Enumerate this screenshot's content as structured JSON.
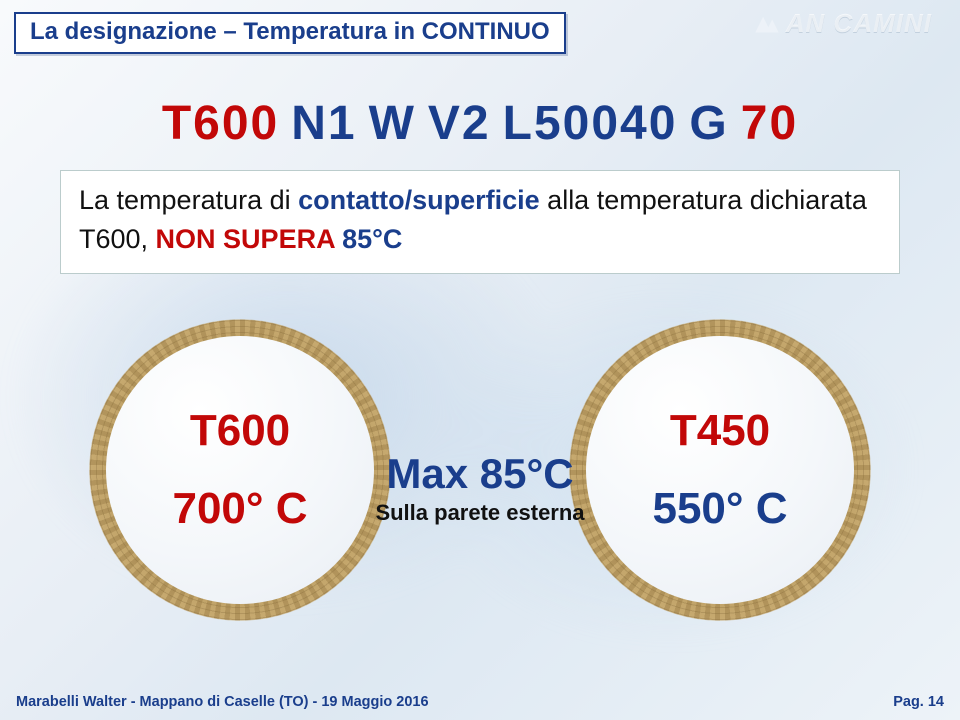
{
  "colors": {
    "blue": "#1a3e8c",
    "red": "#c20808",
    "ring": "#b89a5e",
    "bg_light": "#f8fafc",
    "bg_dark": "#dde8f2"
  },
  "watermark": "AN CAMINI",
  "title": "La designazione – Temperatura in CONTINUO",
  "designation": {
    "parts": [
      {
        "text": "T600",
        "color": "#c20808"
      },
      {
        "text": "N1",
        "color": "#1a3e8c"
      },
      {
        "text": "W",
        "color": "#1a3e8c"
      },
      {
        "text": "V2",
        "color": "#1a3e8c"
      },
      {
        "text": "L50040",
        "color": "#1a3e8c"
      },
      {
        "text": "G",
        "color": "#1a3e8c"
      },
      {
        "text": "70",
        "color": "#c20808"
      }
    ]
  },
  "description": {
    "prefix": "La temperatura di ",
    "blue1": "contatto/superficie",
    "mid": " alla temperatura dichiarata ",
    "t600": "T600, ",
    "red": "NON SUPERA ",
    "temp": "85°C"
  },
  "circles": {
    "left": {
      "t_class": "T600",
      "value": "700° C",
      "value_color": "#c20808"
    },
    "right": {
      "t_class": "T450",
      "value": "550° C",
      "value_color": "#1a3e8c"
    }
  },
  "center": {
    "max": "Max  85°C",
    "sub": "Sulla parete esterna"
  },
  "footer": {
    "left": "Marabelli  Walter  -  Mappano di Caselle (TO)  -  19 Maggio 2016",
    "right": "Pag. 14"
  }
}
